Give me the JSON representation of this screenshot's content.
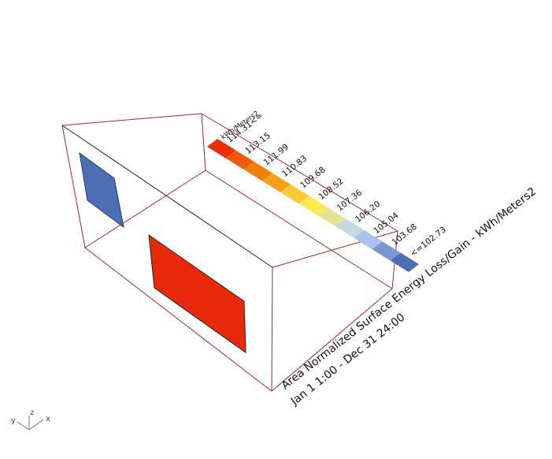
{
  "legend": {
    "unit": "kWh/Meters2",
    "labels": [
      "114.31<=",
      "113.15",
      "111.99",
      "110.83",
      "109.68",
      "108.52",
      "107.36",
      "106.20",
      "105.04",
      "103.68",
      "<=102.73"
    ],
    "colors": [
      "#e8300a",
      "#f05a0a",
      "#f27f0c",
      "#f5a118",
      "#f8c934",
      "#fae94f",
      "#e5e592",
      "#c2dae0",
      "#a9c3ec",
      "#7b96d4",
      "#4c6eb2"
    ]
  },
  "title": {
    "line1": "Area Normalized Surface Energy Loss/Gain - kWh/Meters2",
    "line2": "Jan 1 1:00 - Dec 31 24:00"
  },
  "windows": {
    "left_window_color": "#4c6eb2",
    "front_window_color": "#e82a0a"
  },
  "axes": {
    "y": "y",
    "z": "z",
    "x": "x"
  },
  "colors": {
    "box_edge": "#a0282e",
    "box_edge_dark": "#222222"
  }
}
